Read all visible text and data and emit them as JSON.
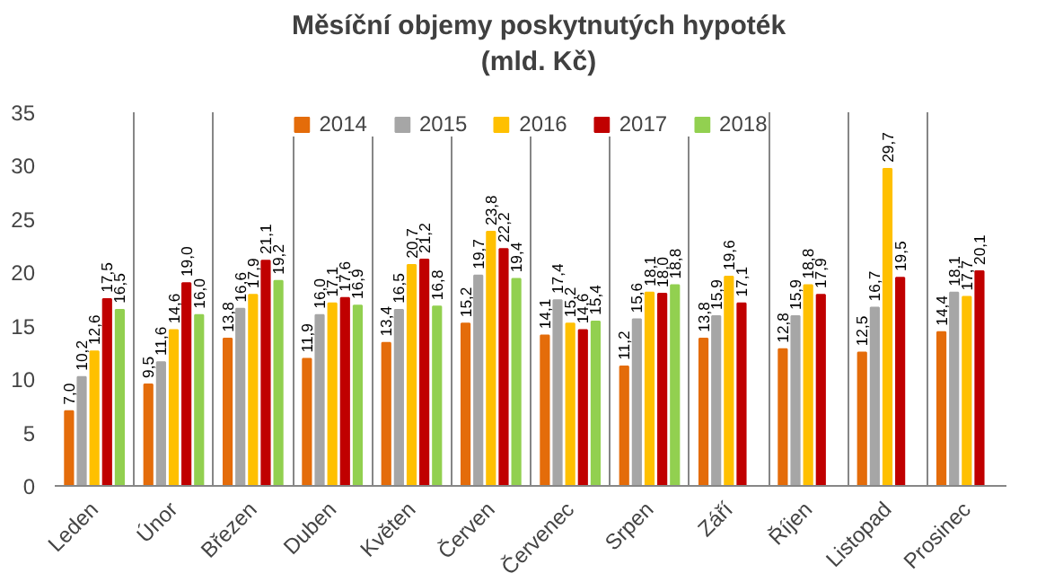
{
  "chart_data": {
    "type": "bar",
    "title": "Měsíční objemy poskytnutých hypoték\n(mld. Kč)",
    "categories": [
      "Leden",
      "Únor",
      "Březen",
      "Duben",
      "Květen",
      "Červen",
      "Červenec",
      "Srpen",
      "Září",
      "Říjen",
      "Listopad",
      "Prosinec"
    ],
    "series": [
      {
        "name": "2014",
        "color": "#e46c0a",
        "values": [
          7.0,
          9.5,
          13.8,
          11.9,
          13.4,
          15.2,
          14.1,
          11.2,
          13.8,
          12.8,
          12.5,
          14.4
        ],
        "value_labels": [
          "7,0",
          "9,5",
          "13,8",
          "11,9",
          "13,4",
          "15,2",
          "14,1",
          "11,2",
          "13,8",
          "12,8",
          "12,5",
          "14,4"
        ]
      },
      {
        "name": "2015",
        "color": "#a6a6a6",
        "values": [
          10.2,
          11.6,
          16.6,
          16.0,
          16.5,
          19.7,
          17.4,
          15.6,
          15.9,
          15.9,
          16.7,
          18.1
        ],
        "value_labels": [
          "10,2",
          "11,6",
          "16,6",
          "16,0",
          "16,5",
          "19,7",
          "17,4",
          "15,6",
          "15,9",
          "15,9",
          "16,7",
          "18,1"
        ]
      },
      {
        "name": "2016",
        "color": "#ffc000",
        "values": [
          12.6,
          14.6,
          17.9,
          17.1,
          20.7,
          23.8,
          15.2,
          18.1,
          19.6,
          18.8,
          29.7,
          17.7
        ],
        "value_labels": [
          "12,6",
          "14,6",
          "17,9",
          "17,1",
          "20,7",
          "23,8",
          "15,2",
          "18,1",
          "19,6",
          "18,8",
          "29,7",
          "17,7"
        ]
      },
      {
        "name": "2017",
        "color": "#c00000",
        "values": [
          17.5,
          19.0,
          21.1,
          17.6,
          21.2,
          22.2,
          14.6,
          18.0,
          17.1,
          17.9,
          19.5,
          20.1
        ],
        "value_labels": [
          "17,5",
          "19,0",
          "21,1",
          "17,6",
          "21,2",
          "22,2",
          "14,6",
          "18,0",
          "17,1",
          "17,9",
          "19,5",
          "20,1"
        ]
      },
      {
        "name": "2018",
        "color": "#92d050",
        "values": [
          16.5,
          16.0,
          19.2,
          16.9,
          16.8,
          19.4,
          15.4,
          18.8,
          null,
          null,
          null,
          null
        ],
        "value_labels": [
          "16,5",
          "16,0",
          "19,2",
          "16,9",
          "16,8",
          "19,4",
          "15,4",
          "18,8",
          null,
          null,
          null,
          null
        ]
      }
    ],
    "ylim": [
      0,
      35
    ],
    "yticks": [
      0,
      5,
      10,
      15,
      20,
      25,
      30,
      35
    ],
    "grid": "x",
    "legend": "top"
  }
}
